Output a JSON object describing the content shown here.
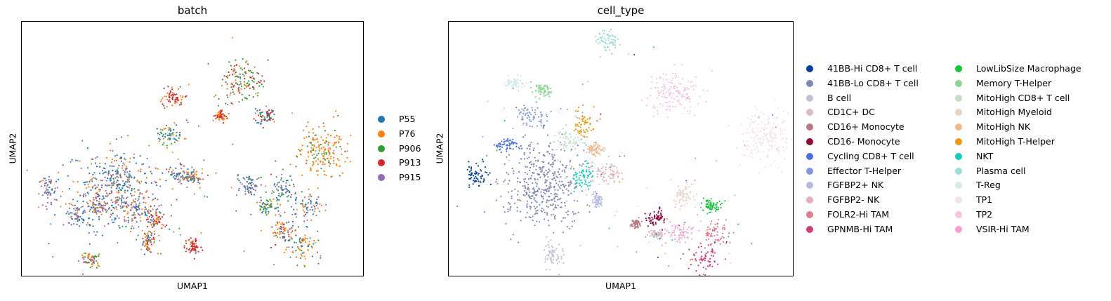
{
  "chart_data": [
    {
      "type": "scatter",
      "title": "batch",
      "xlabel": "UMAP1",
      "ylabel": "UMAP2",
      "grid": false,
      "legend_position": "right",
      "series": [
        {
          "name": "P55",
          "color": "#1f77b4"
        },
        {
          "name": "P76",
          "color": "#ff7f0e"
        },
        {
          "name": "P906",
          "color": "#2ca02c"
        },
        {
          "name": "P913",
          "color": "#d62728"
        },
        {
          "name": "P915",
          "color": "#9467bd"
        }
      ],
      "clusters": [
        {
          "x": 0.08,
          "y": 0.66,
          "rx": 0.03,
          "ry": 0.06,
          "mix": {
            "P915": 0.55,
            "P55": 0.3,
            "P76": 0.15
          }
        },
        {
          "x": 0.16,
          "y": 0.76,
          "rx": 0.03,
          "ry": 0.04,
          "mix": {
            "P55": 0.45,
            "P915": 0.35,
            "P76": 0.2
          }
        },
        {
          "x": 0.2,
          "y": 0.93,
          "rx": 0.025,
          "ry": 0.03,
          "mix": {
            "P76": 0.45,
            "P915": 0.35,
            "P906": 0.2
          }
        },
        {
          "x": 0.22,
          "y": 0.72,
          "rx": 0.025,
          "ry": 0.04,
          "mix": {
            "P76": 0.4,
            "P915": 0.35,
            "P55": 0.25
          }
        },
        {
          "x": 0.28,
          "y": 0.65,
          "rx": 0.1,
          "ry": 0.14,
          "mix": {
            "P55": 0.45,
            "P76": 0.3,
            "P915": 0.25
          }
        },
        {
          "x": 0.33,
          "y": 0.74,
          "rx": 0.04,
          "ry": 0.05,
          "mix": {
            "P76": 0.4,
            "P915": 0.35,
            "P55": 0.25
          }
        },
        {
          "x": 0.39,
          "y": 0.77,
          "rx": 0.025,
          "ry": 0.04,
          "mix": {
            "P913": 0.5,
            "P76": 0.3,
            "P55": 0.2
          }
        },
        {
          "x": 0.37,
          "y": 0.86,
          "rx": 0.02,
          "ry": 0.05,
          "mix": {
            "P76": 0.45,
            "P913": 0.3,
            "P55": 0.25
          }
        },
        {
          "x": 0.44,
          "y": 0.3,
          "rx": 0.03,
          "ry": 0.03,
          "mix": {
            "P913": 0.75,
            "P76": 0.25
          }
        },
        {
          "x": 0.43,
          "y": 0.44,
          "rx": 0.03,
          "ry": 0.04,
          "mix": {
            "P55": 0.5,
            "P906": 0.25,
            "P76": 0.25
          }
        },
        {
          "x": 0.46,
          "y": 0.6,
          "rx": 0.04,
          "ry": 0.03,
          "mix": {
            "P55": 0.4,
            "P76": 0.35,
            "P915": 0.25
          }
        },
        {
          "x": 0.5,
          "y": 0.61,
          "rx": 0.03,
          "ry": 0.025,
          "mix": {
            "P76": 0.5,
            "P55": 0.3,
            "P915": 0.2
          }
        },
        {
          "x": 0.5,
          "y": 0.88,
          "rx": 0.02,
          "ry": 0.03,
          "mix": {
            "P913": 0.8,
            "P76": 0.2
          }
        },
        {
          "x": 0.64,
          "y": 0.23,
          "rx": 0.06,
          "ry": 0.07,
          "mix": {
            "P906": 0.5,
            "P913": 0.3,
            "P76": 0.2
          }
        },
        {
          "x": 0.88,
          "y": 0.51,
          "rx": 0.06,
          "ry": 0.1,
          "mix": {
            "P76": 0.8,
            "P906": 0.2
          }
        },
        {
          "x": 0.66,
          "y": 0.64,
          "rx": 0.03,
          "ry": 0.04,
          "mix": {
            "P915": 0.45,
            "P55": 0.35,
            "P906": 0.2
          }
        },
        {
          "x": 0.72,
          "y": 0.72,
          "rx": 0.03,
          "ry": 0.025,
          "mix": {
            "P906": 0.4,
            "P55": 0.35,
            "P76": 0.25
          }
        },
        {
          "x": 0.71,
          "y": 0.37,
          "rx": 0.03,
          "ry": 0.03,
          "mix": {
            "P913": 0.5,
            "P55": 0.3,
            "P906": 0.2
          }
        },
        {
          "x": 0.77,
          "y": 0.66,
          "rx": 0.04,
          "ry": 0.04,
          "mix": {
            "P55": 0.4,
            "P906": 0.3,
            "P915": 0.3
          }
        },
        {
          "x": 0.76,
          "y": 0.82,
          "rx": 0.025,
          "ry": 0.04,
          "mix": {
            "P76": 0.45,
            "P913": 0.3,
            "P55": 0.25
          }
        },
        {
          "x": 0.82,
          "y": 0.88,
          "rx": 0.04,
          "ry": 0.06,
          "mix": {
            "P76": 0.5,
            "P906": 0.25,
            "P55": 0.25
          }
        },
        {
          "x": 0.84,
          "y": 0.72,
          "rx": 0.04,
          "ry": 0.04,
          "mix": {
            "P55": 0.4,
            "P915": 0.35,
            "P76": 0.25
          }
        },
        {
          "x": 0.58,
          "y": 0.37,
          "rx": 0.015,
          "ry": 0.02,
          "mix": {
            "P913": 0.5,
            "P76": 0.5
          }
        }
      ]
    },
    {
      "type": "scatter",
      "title": "cell_type",
      "xlabel": "UMAP1",
      "ylabel": "UMAP2",
      "grid": false,
      "legend_position": "right",
      "series": [
        {
          "name": "41BB-Hi CD8+ T cell",
          "color": "#023fa5"
        },
        {
          "name": "41BB-Lo CD8+ T cell",
          "color": "#7d87b9"
        },
        {
          "name": "B cell",
          "color": "#bec1d4"
        },
        {
          "name": "CD1C+ DC",
          "color": "#d6bcc0"
        },
        {
          "name": "CD16+ Monocyte",
          "color": "#bb7784"
        },
        {
          "name": "CD16- Monocyte",
          "color": "#8e063b"
        },
        {
          "name": "Cycling CD8+ T cell",
          "color": "#4a6fe3"
        },
        {
          "name": "Effector T-Helper",
          "color": "#8595e1"
        },
        {
          "name": "FGFBP2+ NK",
          "color": "#b5bbe3"
        },
        {
          "name": "FGFBP2- NK",
          "color": "#e6afb9"
        },
        {
          "name": "FOLR2-Hi TAM",
          "color": "#e07b91"
        },
        {
          "name": "GPNMB-Hi TAM",
          "color": "#d33f6a"
        },
        {
          "name": "LowLibSize Macrophage",
          "color": "#11c638"
        },
        {
          "name": "Memory T-Helper",
          "color": "#8dd593"
        },
        {
          "name": "MitoHigh CD8+ T cell",
          "color": "#c6dec7"
        },
        {
          "name": "MitoHigh Myeloid",
          "color": "#ead3c6"
        },
        {
          "name": "MitoHigh NK",
          "color": "#f0b98d"
        },
        {
          "name": "MitoHigh T-Helper",
          "color": "#ef9708"
        },
        {
          "name": "NKT",
          "color": "#0fcfc0"
        },
        {
          "name": "Plasma cell",
          "color": "#9cded6"
        },
        {
          "name": "T-Reg",
          "color": "#d5eae7"
        },
        {
          "name": "TP1",
          "color": "#f3e1eb"
        },
        {
          "name": "TP2",
          "color": "#f6c4e1"
        },
        {
          "name": "VSIR-Hi TAM",
          "color": "#f79cd4"
        }
      ],
      "clusters": [
        {
          "label": "Plasma cell",
          "x": 0.46,
          "y": 0.07,
          "rx": 0.03,
          "ry": 0.03
        },
        {
          "label": "T-Reg",
          "x": 0.19,
          "y": 0.24,
          "rx": 0.03,
          "ry": 0.025
        },
        {
          "label": "Memory T-Helper",
          "x": 0.27,
          "y": 0.27,
          "rx": 0.025,
          "ry": 0.03
        },
        {
          "label": "Effector T-Helper",
          "x": 0.24,
          "y": 0.37,
          "rx": 0.035,
          "ry": 0.04
        },
        {
          "label": "Cycling CD8+ T cell",
          "x": 0.17,
          "y": 0.48,
          "rx": 0.035,
          "ry": 0.03
        },
        {
          "label": "41BB-Hi CD8+ T cell",
          "x": 0.08,
          "y": 0.6,
          "rx": 0.03,
          "ry": 0.05
        },
        {
          "label": "41BB-Lo CD8+ T cell",
          "x": 0.27,
          "y": 0.64,
          "rx": 0.1,
          "ry": 0.14
        },
        {
          "label": "MitoHigh CD8+ T cell",
          "x": 0.34,
          "y": 0.47,
          "rx": 0.04,
          "ry": 0.04
        },
        {
          "label": "MitoHigh T-Helper",
          "x": 0.39,
          "y": 0.4,
          "rx": 0.03,
          "ry": 0.05
        },
        {
          "label": "MitoHigh NK",
          "x": 0.42,
          "y": 0.5,
          "rx": 0.02,
          "ry": 0.02
        },
        {
          "label": "NKT",
          "x": 0.39,
          "y": 0.6,
          "rx": 0.025,
          "ry": 0.04
        },
        {
          "label": "FGFBP2- NK",
          "x": 0.46,
          "y": 0.59,
          "rx": 0.045,
          "ry": 0.04
        },
        {
          "label": "FGFBP2+ NK",
          "x": 0.43,
          "y": 0.7,
          "rx": 0.012,
          "ry": 0.025
        },
        {
          "label": "B cell",
          "x": 0.3,
          "y": 0.91,
          "rx": 0.025,
          "ry": 0.05
        },
        {
          "label": "TP2",
          "x": 0.65,
          "y": 0.28,
          "rx": 0.07,
          "ry": 0.07
        },
        {
          "label": "TP1",
          "x": 0.92,
          "y": 0.45,
          "rx": 0.07,
          "ry": 0.09
        },
        {
          "label": "MitoHigh Myeloid",
          "x": 0.68,
          "y": 0.68,
          "rx": 0.03,
          "ry": 0.04
        },
        {
          "label": "LowLibSize Macrophage",
          "x": 0.76,
          "y": 0.72,
          "rx": 0.025,
          "ry": 0.025
        },
        {
          "label": "CD16- Monocyte",
          "x": 0.6,
          "y": 0.77,
          "rx": 0.025,
          "ry": 0.03
        },
        {
          "label": "CD16+ Monocyte",
          "x": 0.54,
          "y": 0.79,
          "rx": 0.012,
          "ry": 0.015
        },
        {
          "label": "CD1C+ DC",
          "x": 0.6,
          "y": 0.83,
          "rx": 0.02,
          "ry": 0.015
        },
        {
          "label": "VSIR-Hi TAM",
          "x": 0.67,
          "y": 0.82,
          "rx": 0.035,
          "ry": 0.04
        },
        {
          "label": "FOLR2-Hi TAM",
          "x": 0.77,
          "y": 0.83,
          "rx": 0.04,
          "ry": 0.04
        },
        {
          "label": "GPNMB-Hi TAM",
          "x": 0.74,
          "y": 0.92,
          "rx": 0.04,
          "ry": 0.05
        }
      ]
    }
  ]
}
